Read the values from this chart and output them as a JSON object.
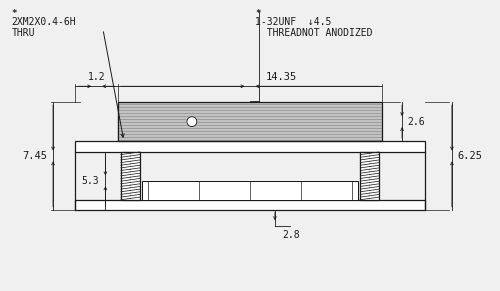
{
  "bg_color": "#f0f0f0",
  "line_color": "#1a1a1a",
  "annotations": {
    "top_left_label": "2XM2X0.4-6H\nTHRU",
    "top_left_star": "*",
    "top_mid_star": "*",
    "thread_line1": "1-32UNF  ↓4.5",
    "thread_line2": "  THREADNOT ANODIZED",
    "dim_1_2": "1.2",
    "dim_14_35": "14.35",
    "dim_7_45": "7.45",
    "dim_5_3": "5.3",
    "dim_2_6": "2.6",
    "dim_6_25": "6.25",
    "dim_2_8": "2.8"
  },
  "figsize": [
    5.0,
    2.91
  ],
  "dpi": 100
}
